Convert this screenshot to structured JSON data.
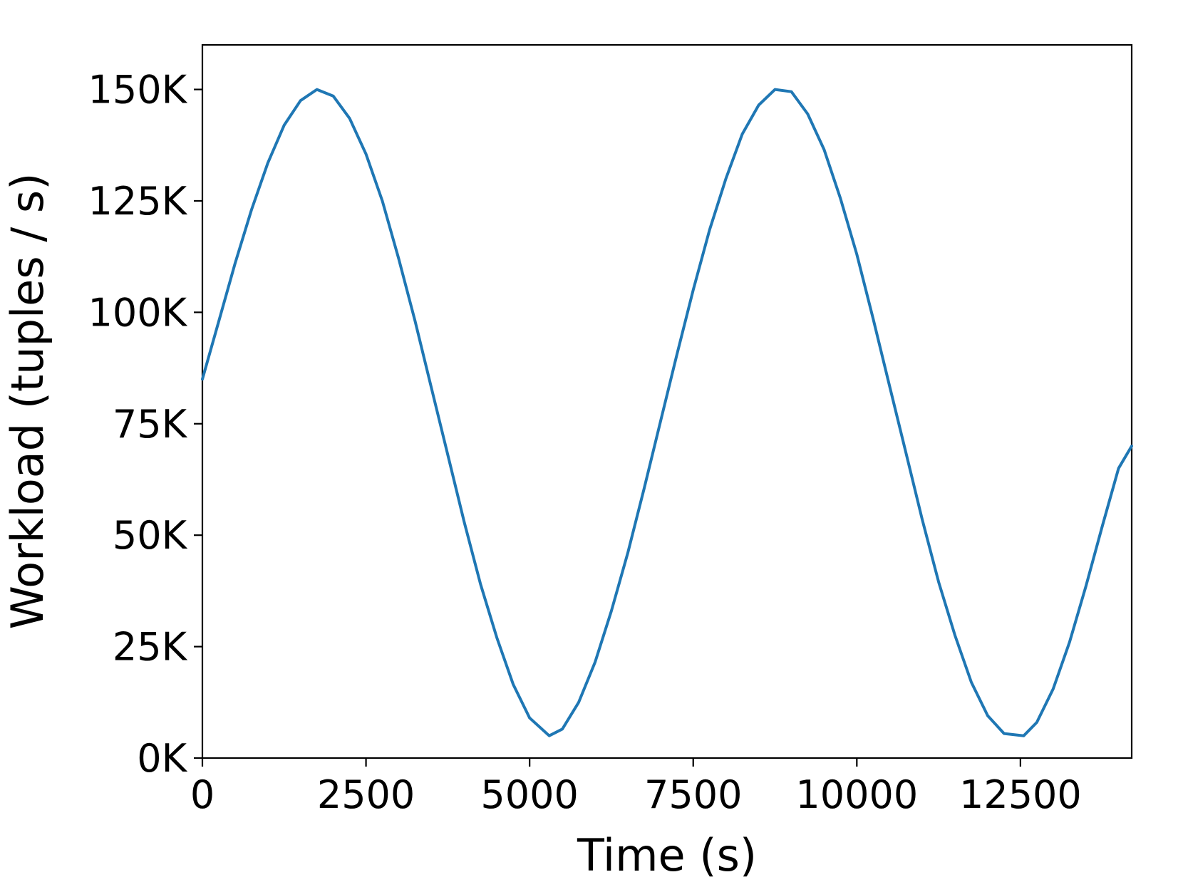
{
  "chart_data": {
    "type": "line",
    "title": "",
    "xlabel": "Time (s)",
    "ylabel": "Workload (tuples / s)",
    "xlim": [
      0,
      14200
    ],
    "ylim": [
      0,
      160000
    ],
    "x_ticks": [
      0,
      2500,
      5000,
      7500,
      10000,
      12500
    ],
    "x_tick_labels": [
      "0",
      "2500",
      "5000",
      "7500",
      "10000",
      "12500"
    ],
    "y_ticks": [
      0,
      25000,
      50000,
      75000,
      100000,
      125000,
      150000
    ],
    "y_tick_labels": [
      "0K",
      "25K",
      "50K",
      "75K",
      "100K",
      "125K",
      "150K"
    ],
    "grid": false,
    "legend": "none",
    "series": [
      {
        "color": "#1f77b4",
        "x": [
          0,
          250,
          500,
          750,
          1000,
          1250,
          1500,
          1750,
          2000,
          2250,
          2500,
          2750,
          3000,
          3250,
          3500,
          3750,
          4000,
          4250,
          4500,
          4750,
          5000,
          5300,
          5500,
          5750,
          6000,
          6250,
          6500,
          6750,
          7000,
          7250,
          7500,
          7750,
          8000,
          8250,
          8500,
          8750,
          9000,
          9250,
          9500,
          9750,
          10000,
          10250,
          10500,
          10750,
          11000,
          11250,
          11500,
          11750,
          12000,
          12250,
          12550,
          12750,
          13000,
          13250,
          13500,
          13750,
          14000,
          14200
        ],
        "y": [
          85000,
          98000,
          111000,
          123000,
          133500,
          142000,
          147500,
          150000,
          148500,
          143500,
          135500,
          125000,
          112000,
          98000,
          83000,
          68000,
          53000,
          39000,
          27000,
          16500,
          9000,
          5000,
          6500,
          12500,
          21500,
          33000,
          46000,
          60500,
          75500,
          90500,
          105000,
          118500,
          130000,
          140000,
          146500,
          150000,
          149500,
          144500,
          136500,
          125500,
          113000,
          98500,
          83500,
          68500,
          53500,
          39500,
          27500,
          17000,
          9500,
          5500,
          5000,
          8000,
          15500,
          26000,
          38500,
          52000,
          65000,
          70000
        ]
      }
    ]
  }
}
